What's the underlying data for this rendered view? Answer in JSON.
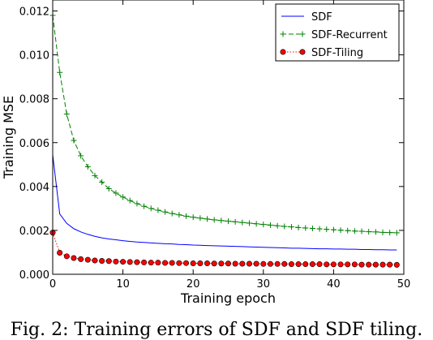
{
  "caption": "Fig. 2: Training errors of SDF and SDF tiling.",
  "colors": {
    "sdf": "#0000ff",
    "recurrent": "#008000",
    "tiling": "#ff0000"
  },
  "chart_data": {
    "type": "line",
    "xlabel": "Training epoch",
    "ylabel": "Training MSE",
    "xlim": [
      0,
      50
    ],
    "ylim": [
      0,
      0.0125
    ],
    "xticks": [
      0,
      10,
      20,
      30,
      40,
      50
    ],
    "yticks": [
      0.0,
      0.002,
      0.004,
      0.006,
      0.008,
      0.01,
      0.012
    ],
    "xtick_labels": [
      "0",
      "10",
      "20",
      "30",
      "40",
      "50"
    ],
    "ytick_labels": [
      "0.000",
      "0.002",
      "0.004",
      "0.006",
      "0.008",
      "0.010",
      "0.012"
    ],
    "grid": false,
    "legend_position": "top-right",
    "x": [
      0,
      1,
      2,
      3,
      4,
      5,
      6,
      7,
      8,
      9,
      10,
      11,
      12,
      13,
      14,
      15,
      16,
      17,
      18,
      19,
      20,
      21,
      22,
      23,
      24,
      25,
      26,
      27,
      28,
      29,
      30,
      31,
      32,
      33,
      34,
      35,
      36,
      37,
      38,
      39,
      40,
      41,
      42,
      43,
      44,
      45,
      46,
      47,
      48,
      49
    ],
    "series": [
      {
        "name": "SDF",
        "marker": "none",
        "linestyle": "solid",
        "values": [
          0.00545,
          0.00275,
          0.00232,
          0.00208,
          0.00193,
          0.00182,
          0.00173,
          0.00166,
          0.00161,
          0.00157,
          0.00153,
          0.0015,
          0.00147,
          0.00145,
          0.00143,
          0.00141,
          0.00139,
          0.00138,
          0.00136,
          0.00135,
          0.00133,
          0.00132,
          0.00131,
          0.0013,
          0.00129,
          0.00128,
          0.00127,
          0.00126,
          0.00125,
          0.00124,
          0.00123,
          0.00122,
          0.00121,
          0.0012,
          0.00119,
          0.00119,
          0.00118,
          0.00117,
          0.00116,
          0.00116,
          0.00115,
          0.00115,
          0.00114,
          0.00114,
          0.00113,
          0.00113,
          0.00112,
          0.00112,
          0.00111,
          0.00111
        ]
      },
      {
        "name": "SDF-Recurrent",
        "marker": "plus",
        "linestyle": "dashed",
        "values": [
          0.0118,
          0.0092,
          0.0073,
          0.0061,
          0.0054,
          0.0049,
          0.0045,
          0.0042,
          0.0039,
          0.0037,
          0.00352,
          0.00336,
          0.00322,
          0.0031,
          0.003,
          0.00292,
          0.00284,
          0.00277,
          0.00271,
          0.00265,
          0.0026,
          0.00256,
          0.00252,
          0.00248,
          0.00245,
          0.00242,
          0.00239,
          0.00236,
          0.00233,
          0.0023,
          0.00227,
          0.00224,
          0.00221,
          0.00218,
          0.00216,
          0.00213,
          0.00211,
          0.00209,
          0.00207,
          0.00205,
          0.00203,
          0.00201,
          0.00199,
          0.00197,
          0.00196,
          0.00194,
          0.00193,
          0.00191,
          0.0019,
          0.00189
        ]
      },
      {
        "name": "SDF-Tiling",
        "marker": "circle",
        "linestyle": "dotted",
        "values": [
          0.0019,
          0.00098,
          0.00082,
          0.00074,
          0.00069,
          0.00066,
          0.00063,
          0.00061,
          0.0006,
          0.00058,
          0.00057,
          0.00056,
          0.00055,
          0.00054,
          0.00053,
          0.00053,
          0.00052,
          0.00052,
          0.00051,
          0.00051,
          0.0005,
          0.0005,
          0.0005,
          0.00049,
          0.00049,
          0.00049,
          0.00048,
          0.00048,
          0.00048,
          0.00048,
          0.00047,
          0.00047,
          0.00047,
          0.00047,
          0.00046,
          0.00046,
          0.00046,
          0.00046,
          0.00046,
          0.00045,
          0.00045,
          0.00045,
          0.00045,
          0.00045,
          0.00044,
          0.00044,
          0.00044,
          0.00044,
          0.00044,
          0.00043
        ]
      }
    ]
  }
}
